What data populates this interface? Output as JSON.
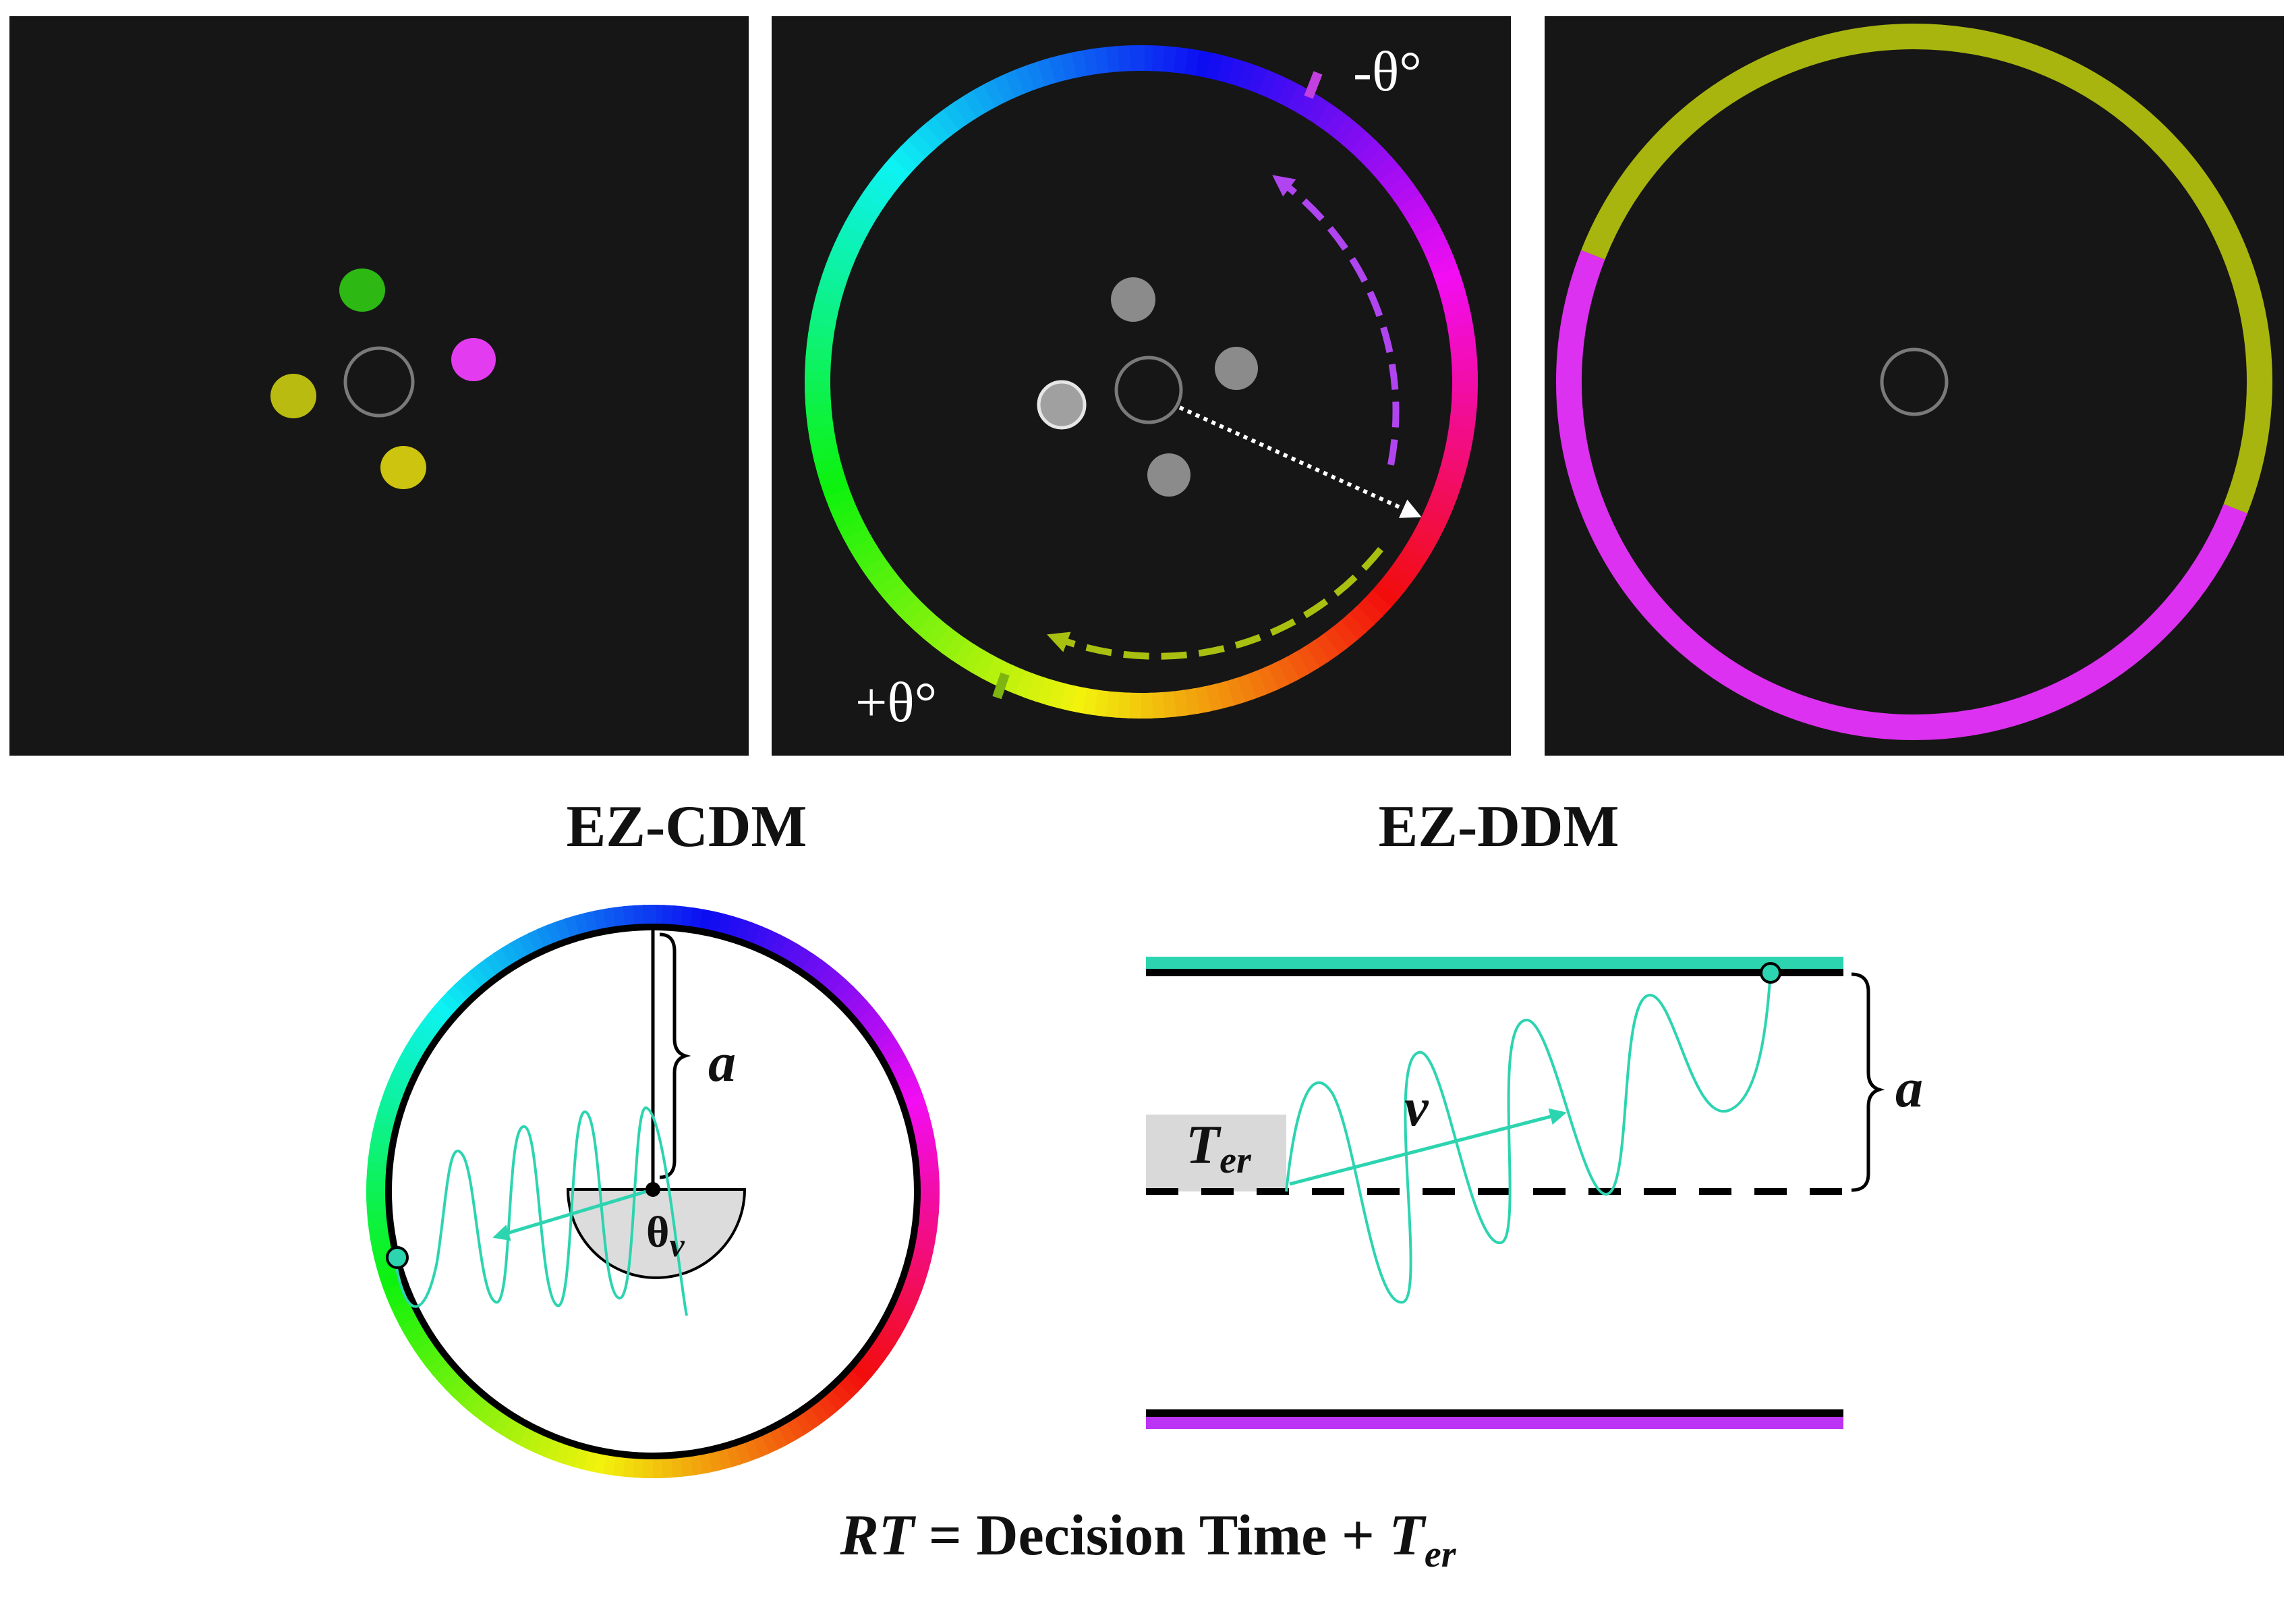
{
  "colors": {
    "background": "#161616",
    "stim_green": "#2db814",
    "stim_magenta": "#e33cf0",
    "stim_olive": "#b9bb10",
    "stim_yellow": "#cdc40f",
    "gray_disc": "#8b8b8b",
    "arrow_magenta": "#b045f0",
    "arrow_olive": "#a9c010",
    "ring_olive": "#a8b50f",
    "ring_magenta": "#dc31f0",
    "teal": "#2dd4b0",
    "purple": "#bb33f5"
  },
  "panels": {
    "response_wheel": {
      "minus_label": "-θ°",
      "plus_label": "+θ°"
    }
  },
  "labels": {
    "cdm_title": "EZ-CDM",
    "ddm_title": "EZ-DDM",
    "cdm_boundary": "a",
    "cdm_angle_main": "θ",
    "cdm_angle_sub": "v",
    "ddm_drift": "v",
    "ddm_boundary": "a",
    "ddm_nondecision_main": "T",
    "ddm_nondecision_sub": "er"
  },
  "formula": {
    "lhs": "RT",
    "middle": " = Decision Time + ",
    "term": "T",
    "term_sub": "er"
  }
}
